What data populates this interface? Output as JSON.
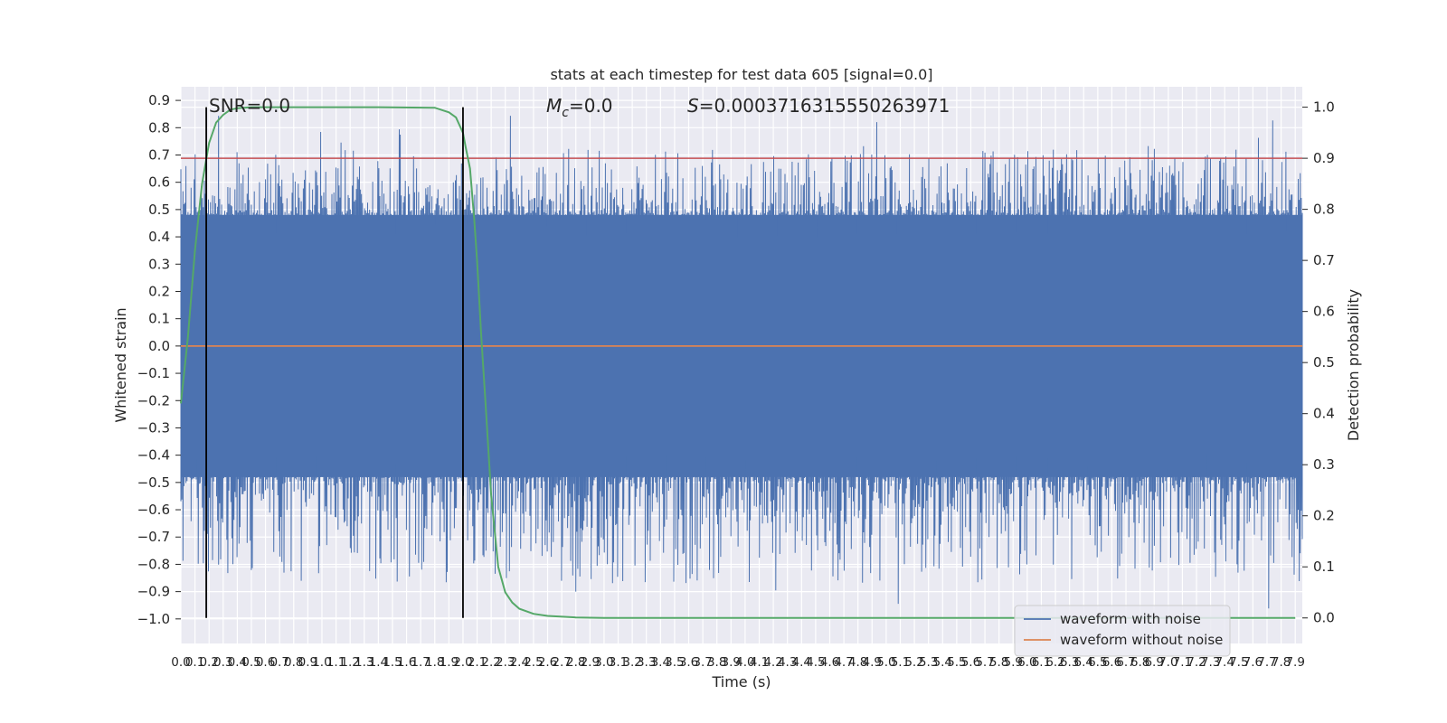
{
  "chart_data": {
    "type": "line",
    "title": "stats at each timestep for test data 605 [signal=0.0]",
    "xlabel": "Time (s)",
    "ylabel": "Whitened strain",
    "y2label": "Detection probability",
    "xlim": [
      0.0,
      7.95
    ],
    "ylim": [
      -1.09,
      0.95
    ],
    "y2lim": [
      -0.05,
      1.04
    ],
    "x_ticks": [
      "0.0",
      "0.1",
      "0.2",
      "0.3",
      "0.4",
      "0.5",
      "0.6",
      "0.7",
      "0.8",
      "0.9",
      "1.0",
      "1.1",
      "1.2",
      "1.3",
      "1.4",
      "1.5",
      "1.6",
      "1.7",
      "1.8",
      "1.9",
      "2.0",
      "2.1",
      "2.2",
      "2.3",
      "2.4",
      "2.5",
      "2.6",
      "2.7",
      "2.8",
      "2.9",
      "3.0",
      "3.1",
      "3.2",
      "3.3",
      "3.4",
      "3.5",
      "3.6",
      "3.7",
      "3.8",
      "3.9",
      "4.0",
      "4.1",
      "4.2",
      "4.3",
      "4.4",
      "4.5",
      "4.6",
      "4.7",
      "4.8",
      "4.9",
      "5.0",
      "5.1",
      "5.2",
      "5.3",
      "5.4",
      "5.5",
      "5.6",
      "5.7",
      "5.8",
      "5.9",
      "6.0",
      "6.1",
      "6.2",
      "6.3",
      "6.4",
      "6.5",
      "6.6",
      "6.7",
      "6.8",
      "6.9",
      "7.0",
      "7.1",
      "7.2",
      "7.3",
      "7.4",
      "7.5",
      "7.6",
      "7.7",
      "7.8",
      "7.9"
    ],
    "y_ticks": [
      "0.9",
      "0.8",
      "0.7",
      "0.6",
      "0.5",
      "0.4",
      "0.3",
      "0.2",
      "0.1",
      "0.0",
      "−0.1",
      "−0.2",
      "−0.3",
      "−0.4",
      "−0.5",
      "−0.6",
      "−0.7",
      "−0.8",
      "−0.9",
      "−1.0"
    ],
    "y2_ticks": [
      "1.0",
      "0.9",
      "0.8",
      "0.7",
      "0.6",
      "0.5",
      "0.4",
      "0.3",
      "0.2",
      "0.1",
      "0.0"
    ],
    "annotations": {
      "snr": "SNR=0.0",
      "mc_symbol": "M",
      "mc_sub": "c",
      "mc_value": "=0.0",
      "s_symbol": "S",
      "s_value": "=0.0003716315550263971"
    },
    "series": [
      {
        "name": "waveform with noise",
        "color": "#4c72b0",
        "envelope": 0.48,
        "typical_peak": 0.62,
        "max_peak": 0.85,
        "min_peak": -0.99
      },
      {
        "name": "waveform without noise",
        "color": "#dd8452",
        "values": "0.0 everywhere"
      },
      {
        "color": "#55a868",
        "x": [
          0.0,
          0.05,
          0.1,
          0.15,
          0.2,
          0.25,
          0.3,
          0.35,
          0.4,
          0.5,
          0.7,
          1.0,
          1.4,
          1.8,
          1.9,
          1.95,
          2.0,
          2.02,
          2.05,
          2.08,
          2.1,
          2.13,
          2.16,
          2.2,
          2.25,
          2.3,
          2.35,
          2.4,
          2.5,
          2.6,
          2.8,
          3.0,
          3.5,
          4.0,
          7.9
        ],
        "y": [
          0.42,
          0.55,
          0.72,
          0.85,
          0.93,
          0.97,
          0.985,
          0.995,
          0.998,
          1.0,
          1.0,
          1.0,
          1.0,
          0.999,
          0.99,
          0.98,
          0.95,
          0.92,
          0.88,
          0.78,
          0.7,
          0.55,
          0.42,
          0.24,
          0.1,
          0.05,
          0.03,
          0.018,
          0.008,
          0.004,
          0.001,
          0.0,
          0.0,
          0.0,
          0.0
        ]
      }
    ],
    "hlines": [
      {
        "y2": 0.9,
        "color": "#c44e52"
      }
    ],
    "vlines": [
      {
        "x": 0.18,
        "color": "#000000"
      },
      {
        "x": 2.0,
        "color": "#000000"
      }
    ],
    "grid": true,
    "legend_position": "lower right"
  }
}
